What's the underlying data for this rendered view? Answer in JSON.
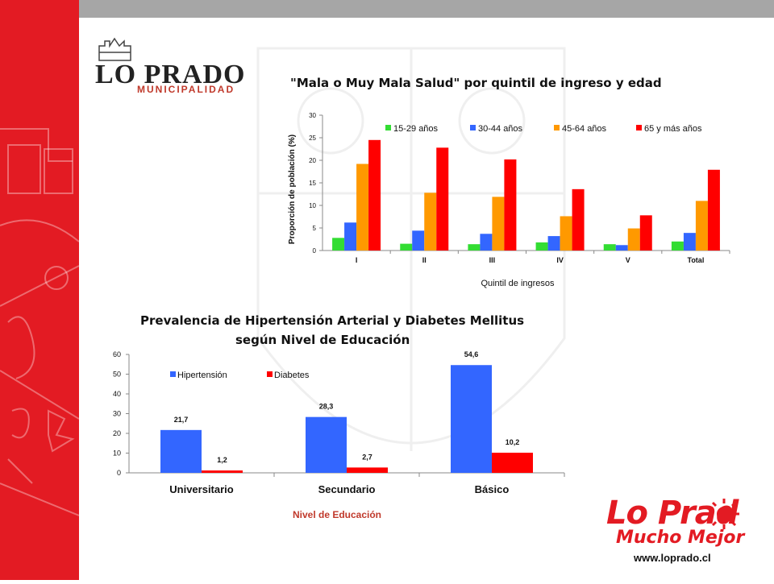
{
  "branding": {
    "logo_main": "LO PRADO",
    "logo_sub": "MUNICIPALIDAD",
    "slogan_main": "Lo Prad",
    "slogan_sub": "Mucho Mejor",
    "url": "www.loprado.cl",
    "accent_color": "#e31b23"
  },
  "chart_data": [
    {
      "type": "bar",
      "title": "\"Mala o Muy Mala Salud\" por quintil de ingreso y edad",
      "xlabel": "Quintil de ingresos",
      "ylabel": "Proporción de población (%)",
      "ylim": [
        0,
        30
      ],
      "yticks": [
        0,
        5,
        10,
        15,
        20,
        25,
        30
      ],
      "ytick_labels": [
        "0",
        "5",
        "10",
        "15",
        "20",
        "25",
        "30"
      ],
      "grid": false,
      "legend": "top",
      "categories": [
        "I",
        "II",
        "III",
        "IV",
        "V",
        "Total"
      ],
      "series": [
        {
          "name": "15-29 años",
          "color": "#33dd33",
          "values": [
            2.8,
            1.5,
            1.4,
            1.8,
            1.4,
            2.0
          ]
        },
        {
          "name": "30-44 años",
          "color": "#3366ff",
          "values": [
            6.2,
            4.4,
            3.7,
            3.2,
            1.2,
            3.9
          ]
        },
        {
          "name": "45-64 años",
          "color": "#ff9900",
          "values": [
            19.2,
            12.8,
            11.9,
            7.6,
            4.9,
            11.0
          ]
        },
        {
          "name": "65 y más años",
          "color": "#ff0000",
          "values": [
            24.5,
            22.8,
            20.2,
            13.6,
            7.8,
            17.9
          ]
        }
      ]
    },
    {
      "type": "bar",
      "title": "Prevalencia de Hipertensión Arterial y Diabetes Mellitus",
      "subtitle": "según Nivel de Educación",
      "xlabel": "Nivel de Educación",
      "ylabel": "",
      "ylim": [
        0,
        60
      ],
      "yticks": [
        0,
        10,
        20,
        30,
        40,
        50,
        60
      ],
      "ytick_labels": [
        "0",
        "10",
        "20",
        "30",
        "40",
        "50",
        "60"
      ],
      "grid": false,
      "legend": "top-left",
      "categories": [
        "Universitario",
        "Secundario",
        "Básico"
      ],
      "series": [
        {
          "name": "Hipertensión",
          "color": "#3366ff",
          "values": [
            21.7,
            28.3,
            54.6
          ],
          "labels": [
            "21,7",
            "28,3",
            "54,6"
          ]
        },
        {
          "name": "Diabetes",
          "color": "#ff0000",
          "values": [
            1.2,
            2.7,
            10.2
          ],
          "labels": [
            "1,2",
            "2,7",
            "10,2"
          ]
        }
      ]
    }
  ]
}
